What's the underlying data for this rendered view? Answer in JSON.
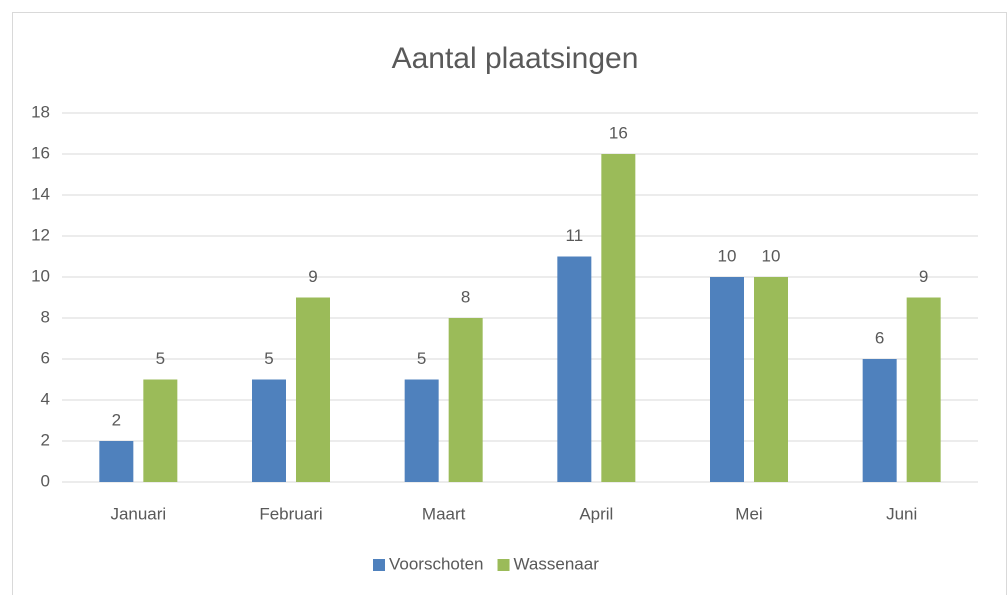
{
  "chart_data": {
    "type": "bar",
    "title": "Aantal plaatsingen",
    "categories": [
      "Januari",
      "Februari",
      "Maart",
      "April",
      "Mei",
      "Juni"
    ],
    "series": [
      {
        "name": "Voorschoten",
        "color": "#4f81bd",
        "values": [
          2,
          5,
          5,
          11,
          10,
          6
        ]
      },
      {
        "name": "Wassenaar",
        "color": "#9bbb59",
        "values": [
          5,
          9,
          8,
          16,
          10,
          9
        ]
      }
    ],
    "ylim": [
      0,
      18
    ],
    "yticks": [
      0,
      2,
      4,
      6,
      8,
      10,
      12,
      14,
      16,
      18
    ],
    "grid": true,
    "legend": "bottom"
  }
}
